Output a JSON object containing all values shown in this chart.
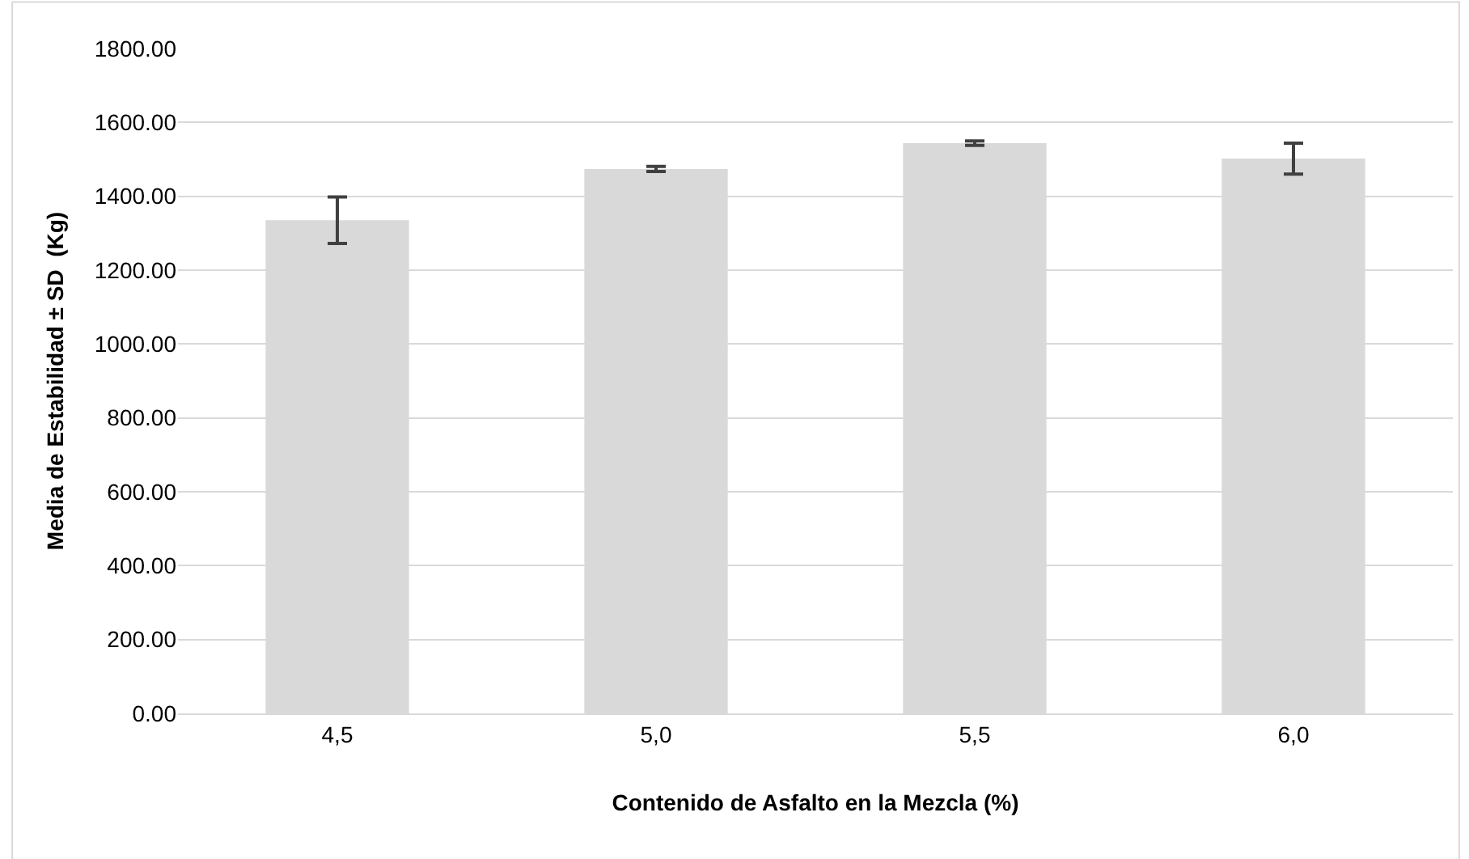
{
  "chart_data": {
    "type": "bar",
    "xlabel": "Contenido de Asfalto en la Mezcla (%)",
    "ylabel": "Media de Estabilidad ± SD  (Kg)",
    "categories": [
      "4,5",
      "5,0",
      "5,5",
      "6,0"
    ],
    "values": [
      1335,
      1474,
      1544,
      1502
    ],
    "errors": [
      63,
      7,
      6,
      42
    ],
    "color": "#d9d9d9",
    "ylim": [
      0,
      1800
    ],
    "yticks": [
      {
        "value": 0,
        "label": "0.00"
      },
      {
        "value": 200,
        "label": "200.00"
      },
      {
        "value": 400,
        "label": "400.00"
      },
      {
        "value": 600,
        "label": "600.00"
      },
      {
        "value": 800,
        "label": "800.00"
      },
      {
        "value": 1000,
        "label": "1000.00"
      },
      {
        "value": 1200,
        "label": "1200.00"
      },
      {
        "value": 1400,
        "label": "1400.00"
      },
      {
        "value": 1600,
        "label": "1600.00"
      },
      {
        "value": 1800,
        "label": "1800.00"
      }
    ],
    "grid": "y"
  }
}
